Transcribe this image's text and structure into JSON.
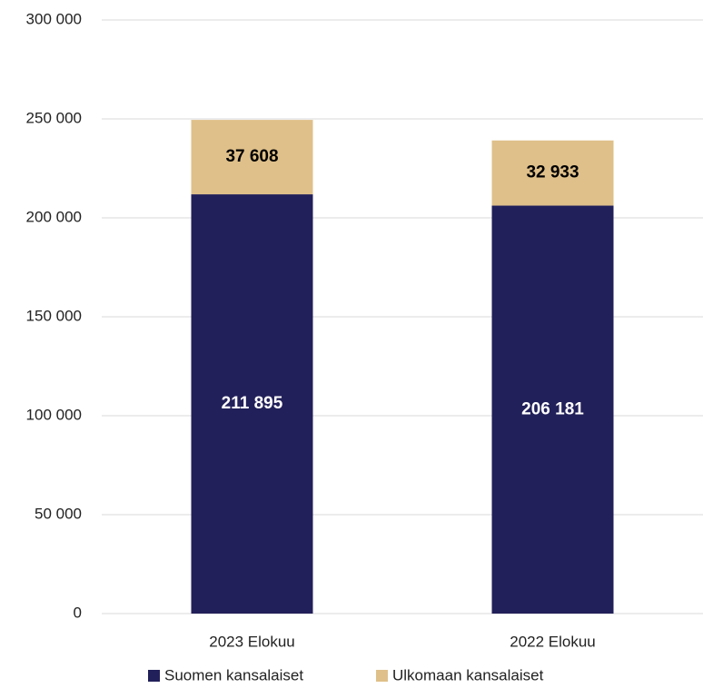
{
  "chart_data": {
    "type": "stacked_bar",
    "categories": [
      "2023 Elokuu",
      "2022 Elokuu"
    ],
    "series": [
      {
        "name": "Suomen kansalaiset",
        "color": "#22205a",
        "values": [
          211895,
          206181
        ],
        "value_labels": [
          "211 895",
          "206 181"
        ],
        "label_color": "#ffffff"
      },
      {
        "name": "Ulkomaan kansalaiset",
        "color": "#dfc08a",
        "values": [
          37608,
          32933
        ],
        "value_labels": [
          "37 608",
          "32 933"
        ],
        "label_color": "#000000"
      }
    ],
    "ylim": [
      0,
      300000
    ],
    "yticks": [
      0,
      {
        "value": 50000,
        "label": "50 000"
      },
      {
        "value": 100000,
        "label": "100 000"
      },
      {
        "value": 150000,
        "label": "150 000"
      },
      {
        "value": 200000,
        "label": "200 000"
      },
      {
        "value": 250000,
        "label": "250 000"
      },
      {
        "value": 300000,
        "label": "300 000"
      }
    ],
    "grid": true,
    "legend": "bottom"
  }
}
